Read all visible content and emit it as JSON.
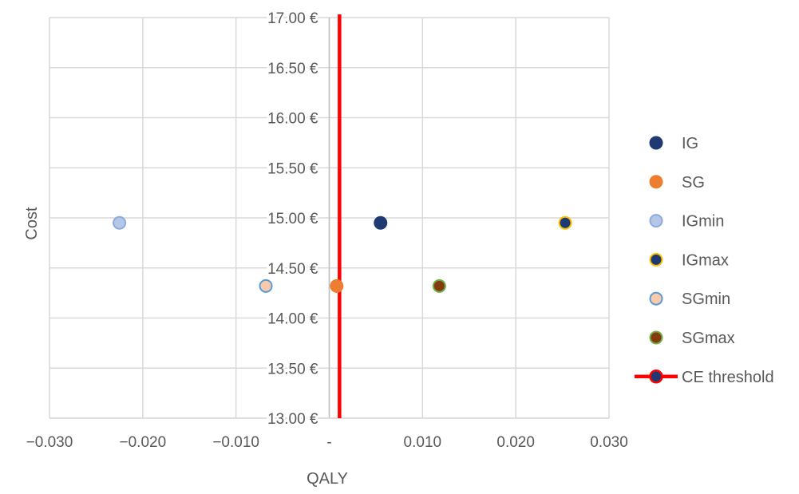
{
  "chart_data": {
    "type": "scatter",
    "xlabel": "QALY",
    "ylabel": "Cost",
    "xlim": [
      -0.03,
      0.03
    ],
    "ylim": [
      13.0,
      17.0
    ],
    "x_ticks": [
      {
        "value": -0.03,
        "label": "−0.030"
      },
      {
        "value": -0.02,
        "label": "−0.020"
      },
      {
        "value": -0.01,
        "label": "−0.010"
      },
      {
        "value": 0.0,
        "label": "-"
      },
      {
        "value": 0.01,
        "label": "0.010"
      },
      {
        "value": 0.02,
        "label": "0.020"
      },
      {
        "value": 0.03,
        "label": "0.030"
      }
    ],
    "y_ticks": [
      {
        "value": 13.0,
        "label": "13.00 €"
      },
      {
        "value": 13.5,
        "label": "13.50 €"
      },
      {
        "value": 14.0,
        "label": "14.00 €"
      },
      {
        "value": 14.5,
        "label": "14.50 €"
      },
      {
        "value": 15.0,
        "label": "15.00 €"
      },
      {
        "value": 15.5,
        "label": "15.50 €"
      },
      {
        "value": 16.0,
        "label": "16.00 €"
      },
      {
        "value": 16.5,
        "label": "16.50 €"
      },
      {
        "value": 17.0,
        "label": "17.00 €"
      }
    ],
    "grid": true,
    "legend_position": "right",
    "series": [
      {
        "name": "IG",
        "x": 0.0055,
        "y": 14.95,
        "fill": "#1f3a73",
        "stroke": "#1f3a73"
      },
      {
        "name": "SG",
        "x": 0.0008,
        "y": 14.32,
        "fill": "#ed7d31",
        "stroke": "#ed7d31"
      },
      {
        "name": "IGmin",
        "x": -0.0225,
        "y": 14.95,
        "fill": "#b4c7e7",
        "stroke": "#8faadc"
      },
      {
        "name": "IGmax",
        "x": 0.0253,
        "y": 14.95,
        "fill": "#1f3a73",
        "stroke": "#ffc000"
      },
      {
        "name": "SGmin",
        "x": -0.0068,
        "y": 14.32,
        "fill": "#f8cbad",
        "stroke": "#5b9bd5"
      },
      {
        "name": "SGmax",
        "x": 0.0118,
        "y": 14.32,
        "fill": "#843c0c",
        "stroke": "#70ad47"
      }
    ],
    "threshold": {
      "name": "CE threshold",
      "x": 0.0011,
      "color": "#ff0000",
      "marker_fill": "#1f3a73"
    },
    "zero_line_x": 0.0
  }
}
